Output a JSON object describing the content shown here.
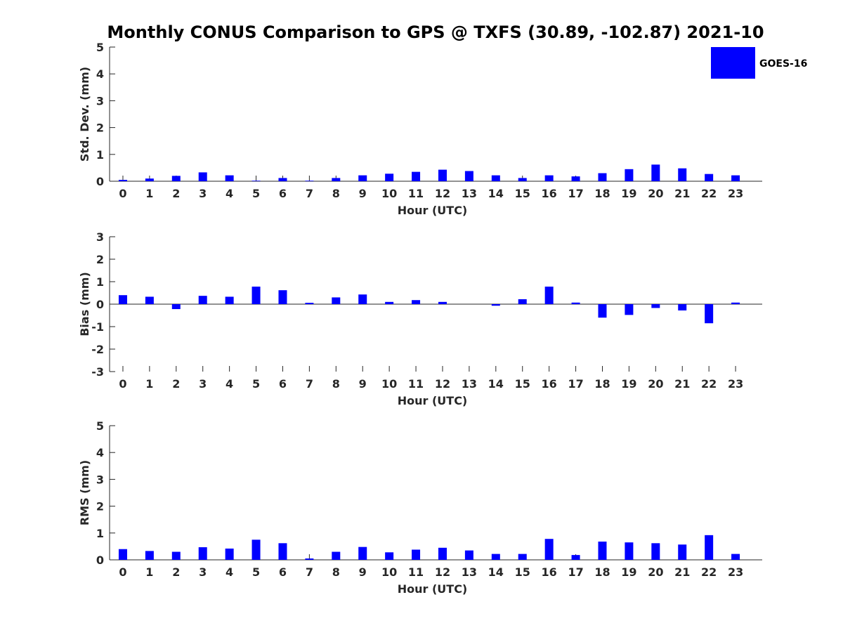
{
  "title": "Monthly CONUS Comparison to GPS @ TXFS (30.89, -102.87) 2021-10",
  "legend": {
    "label": "GOES-16",
    "color": "#0000ff",
    "placement": "top-right"
  },
  "chart_data": [
    {
      "type": "bar",
      "categories": [
        "0",
        "1",
        "2",
        "3",
        "4",
        "5",
        "6",
        "7",
        "8",
        "9",
        "10",
        "11",
        "12",
        "13",
        "14",
        "15",
        "16",
        "17",
        "18",
        "19",
        "20",
        "21",
        "22",
        "23"
      ],
      "series": [
        {
          "name": "GOES-16",
          "values": [
            0.05,
            0.1,
            0.2,
            0.33,
            0.22,
            0.02,
            0.12,
            0.02,
            0.12,
            0.22,
            0.28,
            0.35,
            0.43,
            0.38,
            0.22,
            0.12,
            0.22,
            0.18,
            0.3,
            0.45,
            0.62,
            0.48,
            0.27,
            0.22
          ]
        }
      ],
      "xlabel": "Hour (UTC)",
      "ylabel": "Std. Dev. (mm)",
      "ylim": [
        0,
        5
      ],
      "yticks": [
        "0",
        "1",
        "2",
        "3",
        "4",
        "5"
      ],
      "grid": false
    },
    {
      "type": "bar",
      "categories": [
        "0",
        "1",
        "2",
        "3",
        "4",
        "5",
        "6",
        "7",
        "8",
        "9",
        "10",
        "11",
        "12",
        "13",
        "14",
        "15",
        "16",
        "17",
        "18",
        "19",
        "20",
        "21",
        "22",
        "23"
      ],
      "series": [
        {
          "name": "GOES-16",
          "values": [
            0.4,
            0.33,
            -0.22,
            0.37,
            0.33,
            0.78,
            0.62,
            0.06,
            0.3,
            0.43,
            0.1,
            0.18,
            0.1,
            0.0,
            -0.07,
            0.22,
            0.78,
            0.07,
            -0.6,
            -0.48,
            -0.17,
            -0.28,
            -0.85,
            0.07
          ]
        }
      ],
      "xlabel": "Hour (UTC)",
      "ylabel": "Bias (mm)",
      "ylim": [
        -3,
        3
      ],
      "yticks": [
        "-3",
        "-2",
        "-1",
        "0",
        "1",
        "2",
        "3"
      ],
      "grid": false
    },
    {
      "type": "bar",
      "categories": [
        "0",
        "1",
        "2",
        "3",
        "4",
        "5",
        "6",
        "7",
        "8",
        "9",
        "10",
        "11",
        "12",
        "13",
        "14",
        "15",
        "16",
        "17",
        "18",
        "19",
        "20",
        "21",
        "22",
        "23"
      ],
      "series": [
        {
          "name": "GOES-16",
          "values": [
            0.4,
            0.33,
            0.3,
            0.47,
            0.42,
            0.75,
            0.62,
            0.05,
            0.3,
            0.48,
            0.28,
            0.38,
            0.45,
            0.35,
            0.22,
            0.22,
            0.78,
            0.18,
            0.68,
            0.65,
            0.62,
            0.57,
            0.92,
            0.22
          ]
        }
      ],
      "xlabel": "Hour (UTC)",
      "ylabel": "RMS (mm)",
      "ylim": [
        0,
        5
      ],
      "yticks": [
        "0",
        "1",
        "2",
        "3",
        "4",
        "5"
      ],
      "grid": false
    }
  ]
}
